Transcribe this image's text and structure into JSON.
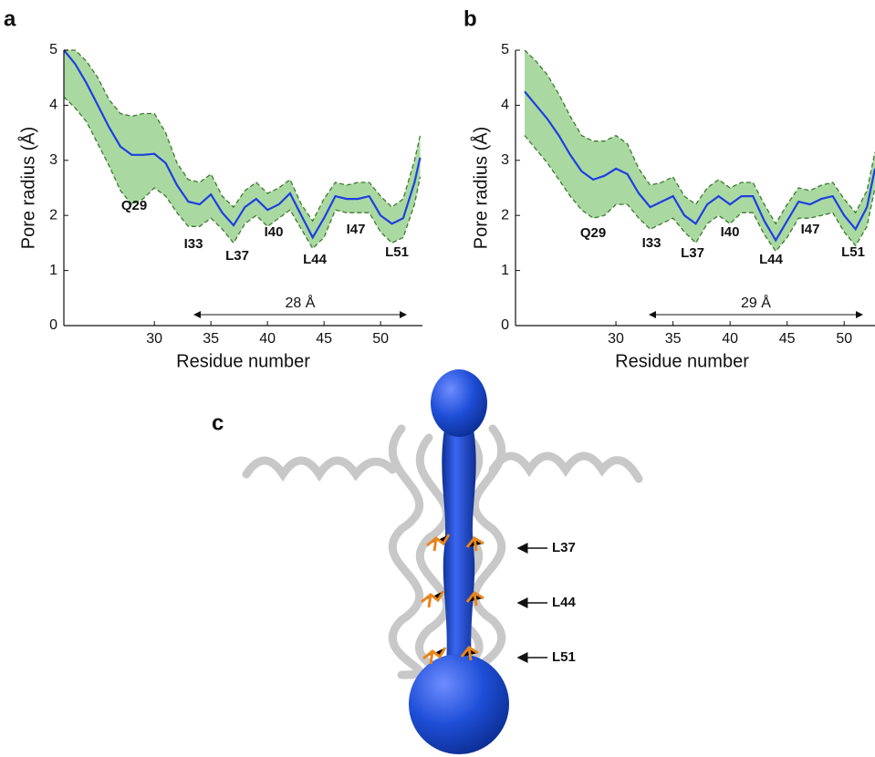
{
  "panel_labels": [
    "a",
    "b",
    "c"
  ],
  "chart_data": [
    {
      "type": "line",
      "xlabel": "Residue number",
      "ylabel": "Pore radius (Å)",
      "x": [
        22,
        23,
        24,
        25,
        26,
        27,
        28,
        29,
        30,
        31,
        32,
        33,
        34,
        35,
        36,
        37,
        38,
        39,
        40,
        41,
        42,
        43,
        44,
        45,
        46,
        47,
        48,
        49,
        50,
        51,
        52,
        53,
        53.5
      ],
      "series": [
        {
          "color": "#1f3fe0",
          "values": [
            5.0,
            4.75,
            4.4,
            4.0,
            3.6,
            3.25,
            3.1,
            3.1,
            3.12,
            2.95,
            2.55,
            2.25,
            2.2,
            2.38,
            2.05,
            1.82,
            2.15,
            2.3,
            2.1,
            2.2,
            2.4,
            2.0,
            1.6,
            1.95,
            2.35,
            2.3,
            2.3,
            2.35,
            2.0,
            1.85,
            1.95,
            2.6,
            3.05
          ]
        }
      ],
      "band": {
        "color": "#a9d9a1",
        "edge_color": "#3c7a30",
        "upper": [
          5.0,
          5.0,
          4.8,
          4.5,
          4.1,
          3.85,
          3.8,
          3.85,
          3.85,
          3.5,
          2.95,
          2.65,
          2.6,
          2.75,
          2.35,
          2.15,
          2.45,
          2.6,
          2.4,
          2.5,
          2.65,
          2.2,
          1.9,
          2.3,
          2.6,
          2.55,
          2.6,
          2.6,
          2.35,
          2.15,
          2.3,
          3.0,
          3.45
        ],
        "lower": [
          4.15,
          3.95,
          3.7,
          3.3,
          2.9,
          2.45,
          2.2,
          2.3,
          2.5,
          2.35,
          2.05,
          1.8,
          1.8,
          1.95,
          1.75,
          1.5,
          1.85,
          2.0,
          1.8,
          1.95,
          2.1,
          1.75,
          1.4,
          1.6,
          2.1,
          2.05,
          2.05,
          2.05,
          1.7,
          1.5,
          1.6,
          2.2,
          2.7
        ]
      },
      "annotations": [
        "Q29",
        "I33",
        "L37",
        "I40",
        "L44",
        "I47",
        "L51"
      ],
      "span_label": "28 Å",
      "xlim": [
        22,
        53.7
      ],
      "ylim": [
        0,
        5
      ],
      "xticks": [
        30,
        35,
        40,
        45,
        50
      ],
      "yticks": [
        0,
        1,
        2,
        3,
        4,
        5
      ]
    },
    {
      "type": "line",
      "xlabel": "Residue number",
      "ylabel": "Pore radius (Å)",
      "x": [
        22,
        23,
        24,
        25,
        26,
        27,
        28,
        29,
        30,
        31,
        32,
        33,
        34,
        35,
        36,
        37,
        38,
        39,
        40,
        41,
        42,
        43,
        44,
        45,
        46,
        47,
        48,
        49,
        50,
        51,
        52,
        52.7
      ],
      "series": [
        {
          "color": "#1f3fe0",
          "values": [
            4.25,
            4.0,
            3.75,
            3.45,
            3.1,
            2.8,
            2.65,
            2.72,
            2.85,
            2.75,
            2.4,
            2.15,
            2.25,
            2.35,
            2.0,
            1.85,
            2.2,
            2.35,
            2.2,
            2.35,
            2.35,
            1.9,
            1.55,
            1.9,
            2.25,
            2.2,
            2.3,
            2.35,
            2.0,
            1.75,
            2.15,
            2.85
          ]
        }
      ],
      "band": {
        "color": "#a9d9a1",
        "edge_color": "#3c7a30",
        "upper": [
          5.0,
          4.8,
          4.55,
          4.2,
          3.8,
          3.45,
          3.35,
          3.35,
          3.45,
          3.3,
          2.85,
          2.55,
          2.6,
          2.7,
          2.35,
          2.2,
          2.5,
          2.65,
          2.5,
          2.6,
          2.6,
          2.2,
          1.85,
          2.2,
          2.5,
          2.45,
          2.55,
          2.6,
          2.3,
          2.05,
          2.45,
          3.15
        ],
        "lower": [
          3.45,
          3.2,
          2.95,
          2.65,
          2.35,
          2.1,
          1.95,
          2.0,
          2.2,
          2.2,
          1.95,
          1.75,
          1.85,
          1.95,
          1.7,
          1.5,
          1.85,
          2.0,
          1.85,
          2.05,
          2.05,
          1.65,
          1.35,
          1.6,
          1.95,
          1.95,
          2.0,
          2.05,
          1.7,
          1.45,
          1.8,
          2.5
        ]
      },
      "annotations": [
        "Q29",
        "I33",
        "L37",
        "I40",
        "L44",
        "I47",
        "L51"
      ],
      "span_label": "29 Å",
      "xlim": [
        21.2,
        52.7
      ],
      "ylim": [
        0,
        5
      ],
      "xticks": [
        30,
        35,
        40,
        45,
        50
      ],
      "yticks": [
        0,
        1,
        2,
        3,
        4,
        5
      ]
    }
  ],
  "panel_c": {
    "labels": [
      "L37",
      "L44",
      "L51"
    ]
  }
}
